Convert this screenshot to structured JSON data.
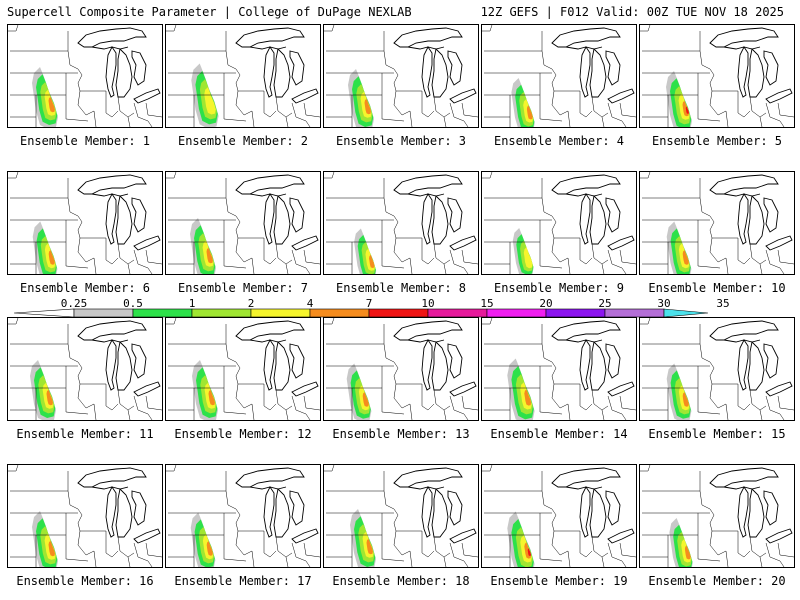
{
  "header": {
    "left": "Supercell Composite Parameter | College of DuPage NEXLAB",
    "right": "12Z GEFS | F012 Valid: 00Z TUE NOV 18 2025"
  },
  "colorbar": {
    "ticks": [
      "0.25",
      "0.5",
      "1",
      "2",
      "4",
      "7",
      "10",
      "15",
      "20",
      "25",
      "30",
      "35"
    ],
    "colors": [
      "#c8c8c8",
      "#2de14a",
      "#a0e632",
      "#f5f52d",
      "#f58c1e",
      "#f01414",
      "#e6199b",
      "#f01ef0",
      "#8c14f0",
      "#b46ed7",
      "#4be1eb"
    ]
  },
  "member_label_prefix": "Ensemble Member:",
  "members": [
    {
      "number": "1",
      "label": "Ensemble Member: 1",
      "max": "4"
    },
    {
      "number": "2",
      "label": "Ensemble Member: 2",
      "max": "2"
    },
    {
      "number": "3",
      "label": "Ensemble Member: 3",
      "max": "4"
    },
    {
      "number": "4",
      "label": "Ensemble Member: 4",
      "max": "4"
    },
    {
      "number": "5",
      "label": "Ensemble Member: 5",
      "max": "7"
    },
    {
      "number": "6",
      "label": "Ensemble Member: 6",
      "max": "4"
    },
    {
      "number": "7",
      "label": "Ensemble Member: 7",
      "max": "4"
    },
    {
      "number": "8",
      "label": "Ensemble Member: 8",
      "max": "4"
    },
    {
      "number": "9",
      "label": "Ensemble Member: 9",
      "max": "2"
    },
    {
      "number": "10",
      "label": "Ensemble Member: 10",
      "max": "4"
    },
    {
      "number": "11",
      "label": "Ensemble Member: 11",
      "max": "4"
    },
    {
      "number": "12",
      "label": "Ensemble Member: 12",
      "max": "4"
    },
    {
      "number": "13",
      "label": "Ensemble Member: 13",
      "max": "4"
    },
    {
      "number": "14",
      "label": "Ensemble Member: 14",
      "max": "4"
    },
    {
      "number": "15",
      "label": "Ensemble Member: 15",
      "max": "4"
    },
    {
      "number": "16",
      "label": "Ensemble Member: 16",
      "max": "4"
    },
    {
      "number": "17",
      "label": "Ensemble Member: 17",
      "max": "4"
    },
    {
      "number": "18",
      "label": "Ensemble Member: 18",
      "max": "4"
    },
    {
      "number": "19",
      "label": "Ensemble Member: 19",
      "max": "7"
    },
    {
      "number": "20",
      "label": "Ensemble Member: 20",
      "max": "4"
    }
  ],
  "colors": {
    "background": "#ffffff",
    "border": "#000000",
    "map_lines": "#000000"
  }
}
